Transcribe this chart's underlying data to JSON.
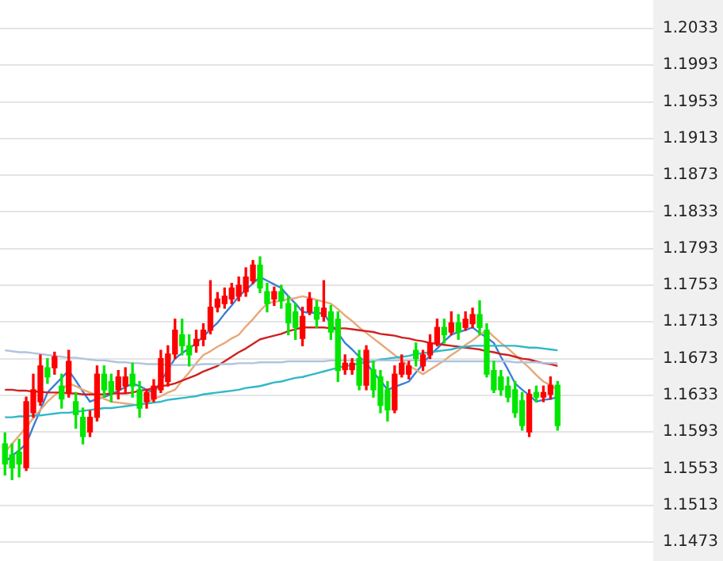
{
  "chart_data": {
    "type": "candlestick",
    "tick_labels": "y",
    "grid": "y",
    "ylim": [
      1.1473,
      1.2033
    ],
    "yticks": [
      1.1473,
      1.1513,
      1.1553,
      1.1593,
      1.1633,
      1.1673,
      1.1713,
      1.1753,
      1.1793,
      1.1833,
      1.1873,
      1.1913,
      1.1953,
      1.1993,
      1.2033
    ],
    "categories": [
      null,
      null,
      null,
      null,
      null,
      null,
      null,
      null,
      null,
      null,
      null,
      null,
      null,
      null,
      null,
      null,
      null,
      null,
      null,
      null,
      null,
      null,
      null,
      null,
      null,
      null,
      null,
      null,
      null,
      null,
      null,
      null,
      null,
      null,
      null,
      null,
      null,
      null,
      null,
      null,
      null,
      null,
      null,
      null,
      null,
      null,
      null,
      null,
      null,
      null,
      null,
      null,
      null,
      null,
      null,
      null,
      null,
      null,
      null,
      null,
      null,
      null,
      null,
      null,
      null,
      null,
      null,
      null,
      null,
      null,
      null,
      null,
      null,
      null,
      null,
      null,
      null,
      null,
      null
    ],
    "ohlc": [
      [
        1.158,
        1.1592,
        1.1546,
        1.1558
      ],
      [
        1.1568,
        1.158,
        1.1541,
        1.1554
      ],
      [
        1.1571,
        1.1585,
        1.1544,
        1.1558
      ],
      [
        1.1554,
        1.1631,
        1.1551,
        1.1626
      ],
      [
        1.1614,
        1.1656,
        1.1609,
        1.1639
      ],
      [
        1.1626,
        1.1677,
        1.1622,
        1.1665
      ],
      [
        1.1663,
        1.1673,
        1.1646,
        1.1653
      ],
      [
        1.1663,
        1.168,
        1.1656,
        1.1675
      ],
      [
        1.1643,
        1.1656,
        1.1619,
        1.1629
      ],
      [
        1.1636,
        1.1682,
        1.1631,
        1.167
      ],
      [
        1.1626,
        1.1636,
        1.1597,
        1.1612
      ],
      [
        1.1609,
        1.1619,
        1.158,
        1.1588
      ],
      [
        1.1593,
        1.1616,
        1.1588,
        1.1609
      ],
      [
        1.1609,
        1.1665,
        1.1605,
        1.1656
      ],
      [
        1.1656,
        1.1665,
        1.1631,
        1.1639
      ],
      [
        1.1648,
        1.1656,
        1.1626,
        1.1636
      ],
      [
        1.1639,
        1.166,
        1.1629,
        1.1653
      ],
      [
        1.1643,
        1.1663,
        1.1636,
        1.1653
      ],
      [
        1.1656,
        1.1668,
        1.1631,
        1.1643
      ],
      [
        1.1639,
        1.1648,
        1.1609,
        1.1619
      ],
      [
        1.1626,
        1.1639,
        1.1619,
        1.1636
      ],
      [
        1.1629,
        1.165,
        1.1626,
        1.1643
      ],
      [
        1.1639,
        1.1682,
        1.1636,
        1.1673
      ],
      [
        1.1648,
        1.1687,
        1.1643,
        1.1678
      ],
      [
        1.1678,
        1.1716,
        1.1673,
        1.1704
      ],
      [
        1.1699,
        1.1716,
        1.1677,
        1.1687
      ],
      [
        1.1687,
        1.1699,
        1.1665,
        1.1677
      ],
      [
        1.1687,
        1.1704,
        1.168,
        1.1694
      ],
      [
        1.1694,
        1.1711,
        1.1687,
        1.1704
      ],
      [
        1.1704,
        1.1758,
        1.17,
        1.1729
      ],
      [
        1.1729,
        1.1745,
        1.1724,
        1.1738
      ],
      [
        1.1733,
        1.175,
        1.1728,
        1.1741
      ],
      [
        1.1738,
        1.1755,
        1.1733,
        1.175
      ],
      [
        1.1741,
        1.1762,
        1.1736,
        1.1753
      ],
      [
        1.1746,
        1.1772,
        1.1741,
        1.1762
      ],
      [
        1.1758,
        1.178,
        1.1755,
        1.1775
      ],
      [
        1.1775,
        1.1784,
        1.1745,
        1.175
      ],
      [
        1.1746,
        1.1755,
        1.1724,
        1.1733
      ],
      [
        1.1738,
        1.1751,
        1.1731,
        1.1746
      ],
      [
        1.1746,
        1.1753,
        1.1728,
        1.1736
      ],
      [
        1.1733,
        1.1741,
        1.1699,
        1.1712
      ],
      [
        1.1724,
        1.1733,
        1.1694,
        1.1707
      ],
      [
        1.1695,
        1.1729,
        1.1687,
        1.1719
      ],
      [
        1.1724,
        1.1745,
        1.1721,
        1.1738
      ],
      [
        1.1729,
        1.1736,
        1.1707,
        1.1716
      ],
      [
        1.1719,
        1.1758,
        1.1714,
        1.1728
      ],
      [
        1.1724,
        1.1731,
        1.1694,
        1.1702
      ],
      [
        1.1716,
        1.1724,
        1.1648,
        1.166
      ],
      [
        1.1661,
        1.1677,
        1.1656,
        1.1668
      ],
      [
        1.1661,
        1.1673,
        1.1656,
        1.1668
      ],
      [
        1.1673,
        1.1682,
        1.1639,
        1.1644
      ],
      [
        1.1644,
        1.1687,
        1.1639,
        1.1682
      ],
      [
        1.1661,
        1.167,
        1.1631,
        1.1639
      ],
      [
        1.1653,
        1.166,
        1.1614,
        1.1622
      ],
      [
        1.1639,
        1.1648,
        1.1605,
        1.1617
      ],
      [
        1.1617,
        1.1665,
        1.1614,
        1.1656
      ],
      [
        1.1656,
        1.1677,
        1.1653,
        1.1668
      ],
      [
        1.1656,
        1.167,
        1.1651,
        1.1665
      ],
      [
        1.1682,
        1.169,
        1.1665,
        1.1673
      ],
      [
        1.1665,
        1.1682,
        1.166,
        1.1677
      ],
      [
        1.1677,
        1.1699,
        1.1673,
        1.169
      ],
      [
        1.169,
        1.1716,
        1.1687,
        1.1707
      ],
      [
        1.1707,
        1.1716,
        1.169,
        1.1699
      ],
      [
        1.1702,
        1.1724,
        1.1699,
        1.1712
      ],
      [
        1.1712,
        1.1721,
        1.1694,
        1.1702
      ],
      [
        1.1707,
        1.1724,
        1.1704,
        1.1716
      ],
      [
        1.1711,
        1.1728,
        1.1707,
        1.1721
      ],
      [
        1.1721,
        1.1736,
        1.1699,
        1.1707
      ],
      [
        1.1704,
        1.1711,
        1.1653,
        1.1656
      ],
      [
        1.166,
        1.167,
        1.1636,
        1.1639
      ],
      [
        1.1653,
        1.166,
        1.1633,
        1.1639
      ],
      [
        1.1643,
        1.1653,
        1.1626,
        1.1631
      ],
      [
        1.1639,
        1.1648,
        1.1609,
        1.1614
      ],
      [
        1.1627,
        1.1636,
        1.1595,
        1.16
      ],
      [
        1.1593,
        1.1639,
        1.1588,
        1.1634
      ],
      [
        1.1636,
        1.1643,
        1.1626,
        1.1631
      ],
      [
        1.1631,
        1.1643,
        1.1626,
        1.1636
      ],
      [
        1.1634,
        1.1653,
        1.1629,
        1.1644
      ],
      [
        1.1644,
        1.1648,
        1.1595,
        1.16
      ]
    ],
    "colors": [
      "#00e600",
      "#00e600",
      "#00e600",
      "#ff0000",
      "#ff0000",
      "#ff0000",
      "#00e600",
      "#ff0000",
      "#00e600",
      "#ff0000",
      "#00e600",
      "#00e600",
      "#ff0000",
      "#ff0000",
      "#00e600",
      "#00e600",
      "#ff0000",
      "#ff0000",
      "#00e600",
      "#00e600",
      "#ff0000",
      "#ff0000",
      "#ff0000",
      "#ff0000",
      "#ff0000",
      "#00e600",
      "#00e600",
      "#ff0000",
      "#ff0000",
      "#ff0000",
      "#ff0000",
      "#ff0000",
      "#ff0000",
      "#ff0000",
      "#ff0000",
      "#ff0000",
      "#00e600",
      "#00e600",
      "#ff0000",
      "#00e600",
      "#00e600",
      "#00e600",
      "#ff0000",
      "#ff0000",
      "#00e600",
      "#ff0000",
      "#00e600",
      "#00e600",
      "#ff0000",
      "#ff0000",
      "#00e600",
      "#ff0000",
      "#00e600",
      "#00e600",
      "#00e600",
      "#ff0000",
      "#ff0000",
      "#ff0000",
      "#00e600",
      "#ff0000",
      "#ff0000",
      "#ff0000",
      "#00e600",
      "#ff0000",
      "#00e600",
      "#ff0000",
      "#ff0000",
      "#00e600",
      "#00e600",
      "#00e600",
      "#00e600",
      "#00e600",
      "#00e600",
      "#00e600",
      "#ff0000",
      "#00e600",
      "#ff0000",
      "#ff0000",
      "#00e600"
    ],
    "series": [
      {
        "type": "line",
        "color": "#b0c4de",
        "values": [
          1.1682,
          1.1681,
          1.168,
          1.168,
          1.1679,
          1.1678,
          1.1677,
          1.1676,
          1.1675,
          1.1674,
          1.1674,
          1.1673,
          1.1672,
          1.1671,
          1.1671,
          1.167,
          1.1669,
          1.1669,
          1.1668,
          1.1668,
          1.1667,
          1.1667,
          1.1667,
          1.1666,
          1.1666,
          1.1666,
          1.1666,
          1.1666,
          1.1667,
          1.1667,
          1.1667,
          1.1667,
          1.1667,
          1.1668,
          1.1668,
          1.1668,
          1.1669,
          1.1669,
          1.1669,
          1.1669,
          1.167,
          1.167,
          1.167,
          1.167,
          1.167,
          1.167,
          1.1671,
          1.1671,
          1.1671,
          1.1671,
          1.1671,
          1.1671,
          1.1671,
          1.1671,
          1.1671,
          1.1671,
          1.1671,
          1.1671,
          1.1671,
          1.1671,
          1.167,
          1.167,
          1.167,
          1.167,
          1.167,
          1.167,
          1.167,
          1.167,
          1.167,
          1.167,
          1.167,
          1.167,
          1.1669,
          1.1669,
          1.1669,
          1.1669,
          1.1668,
          1.1668,
          1.1668
        ]
      },
      {
        "type": "line",
        "color": "#30b8c8",
        "values": [
          1.1609,
          1.1609,
          1.161,
          1.161,
          1.1611,
          1.1611,
          1.1612,
          1.1613,
          1.1614,
          1.1614,
          1.1615,
          1.1616,
          1.1617,
          1.1618,
          1.1619,
          1.1619,
          1.162,
          1.1621,
          1.1622,
          1.1623,
          1.1624,
          1.1625,
          1.1626,
          1.1628,
          1.1629,
          1.163,
          1.1631,
          1.1632,
          1.1634,
          1.1635,
          1.1636,
          1.1637,
          1.1638,
          1.1639,
          1.1641,
          1.1642,
          1.1643,
          1.1645,
          1.1647,
          1.1648,
          1.165,
          1.1652,
          1.1653,
          1.1655,
          1.1657,
          1.1659,
          1.1661,
          1.1663,
          1.1665,
          1.1666,
          1.1668,
          1.1669,
          1.167,
          1.1672,
          1.1673,
          1.1674,
          1.1675,
          1.1676,
          1.1678,
          1.1679,
          1.168,
          1.1681,
          1.1682,
          1.1683,
          1.1685,
          1.1686,
          1.1687,
          1.1687,
          1.1687,
          1.1687,
          1.1687,
          1.1687,
          1.1687,
          1.1686,
          1.1685,
          1.1685,
          1.1684,
          1.1683,
          1.1682
        ]
      },
      {
        "type": "line",
        "color": "#d02020",
        "values": [
          1.1639,
          1.1639,
          1.1638,
          1.1638,
          1.1637,
          1.1637,
          1.1636,
          1.1636,
          1.1636,
          1.1635,
          1.1635,
          1.1634,
          1.1634,
          1.1634,
          1.1634,
          1.1635,
          1.1635,
          1.1635,
          1.1636,
          1.1638,
          1.1639,
          1.1641,
          1.1643,
          1.1644,
          1.1646,
          1.1649,
          1.1652,
          1.1655,
          1.1659,
          1.1662,
          1.1665,
          1.167,
          1.1675,
          1.168,
          1.1684,
          1.1689,
          1.1694,
          1.1696,
          1.1698,
          1.17,
          1.1703,
          1.1705,
          1.1707,
          1.1707,
          1.1707,
          1.1707,
          1.1706,
          1.1706,
          1.1706,
          1.1705,
          1.1704,
          1.1703,
          1.1702,
          1.17,
          1.1699,
          1.1698,
          1.1696,
          1.1695,
          1.1693,
          1.1692,
          1.169,
          1.1689,
          1.1688,
          1.1687,
          1.1686,
          1.1685,
          1.1684,
          1.1683,
          1.1681,
          1.168,
          1.1678,
          1.1677,
          1.1675,
          1.1673,
          1.1672,
          1.167,
          1.1668,
          1.1667,
          1.1665
        ]
      },
      {
        "type": "line",
        "color": "#e8a878",
        "values": [
          1.1571,
          1.158,
          1.1589,
          1.1598,
          1.1608,
          1.1617,
          1.1626,
          1.1633,
          1.1639,
          1.1646,
          1.1643,
          1.1639,
          1.1636,
          1.1633,
          1.1629,
          1.1626,
          1.1625,
          1.1624,
          1.1623,
          1.1622,
          1.1625,
          1.1629,
          1.1632,
          1.1636,
          1.1639,
          1.1649,
          1.1658,
          1.1668,
          1.1677,
          1.1681,
          1.1686,
          1.169,
          1.1695,
          1.1699,
          1.1708,
          1.1716,
          1.1725,
          1.1733,
          1.1735,
          1.1736,
          1.1738,
          1.1739,
          1.1741,
          1.1739,
          1.1737,
          1.1735,
          1.1733,
          1.1727,
          1.172,
          1.1714,
          1.1707,
          1.1701,
          1.1695,
          1.1689,
          1.1683,
          1.1677,
          1.1671,
          1.1665,
          1.1661,
          1.1656,
          1.1661,
          1.1666,
          1.1671,
          1.1677,
          1.1682,
          1.1688,
          1.1693,
          1.1699,
          1.1704,
          1.1697,
          1.169,
          1.1684,
          1.1677,
          1.167,
          1.1663,
          1.1655,
          1.1648,
          1.1644,
          1.1639
        ]
      },
      {
        "type": "line",
        "color": "#3a80d8",
        "values": [
          1.156,
          1.1567,
          1.1573,
          1.158,
          1.1599,
          1.1617,
          1.1636,
          1.1644,
          1.1652,
          1.166,
          1.1649,
          1.1637,
          1.1626,
          1.1629,
          1.1631,
          1.1634,
          1.1638,
          1.1642,
          1.1646,
          1.1643,
          1.1639,
          1.1636,
          1.1648,
          1.1661,
          1.1673,
          1.1679,
          1.1684,
          1.169,
          1.1697,
          1.1705,
          1.1712,
          1.1722,
          1.1731,
          1.1741,
          1.1748,
          1.1755,
          1.1762,
          1.1758,
          1.1754,
          1.175,
          1.1741,
          1.1733,
          1.1724,
          1.1723,
          1.1723,
          1.1722,
          1.1711,
          1.1701,
          1.169,
          1.1683,
          1.1675,
          1.1668,
          1.1658,
          1.1649,
          1.1639,
          1.1642,
          1.1645,
          1.1648,
          1.1658,
          1.1667,
          1.1677,
          1.1684,
          1.1692,
          1.1699,
          1.1702,
          1.1704,
          1.1707,
          1.1701,
          1.1696,
          1.169,
          1.1675,
          1.1661,
          1.1646,
          1.1639,
          1.1633,
          1.1626,
          1.1628,
          1.1629,
          1.1631
        ]
      }
    ]
  }
}
